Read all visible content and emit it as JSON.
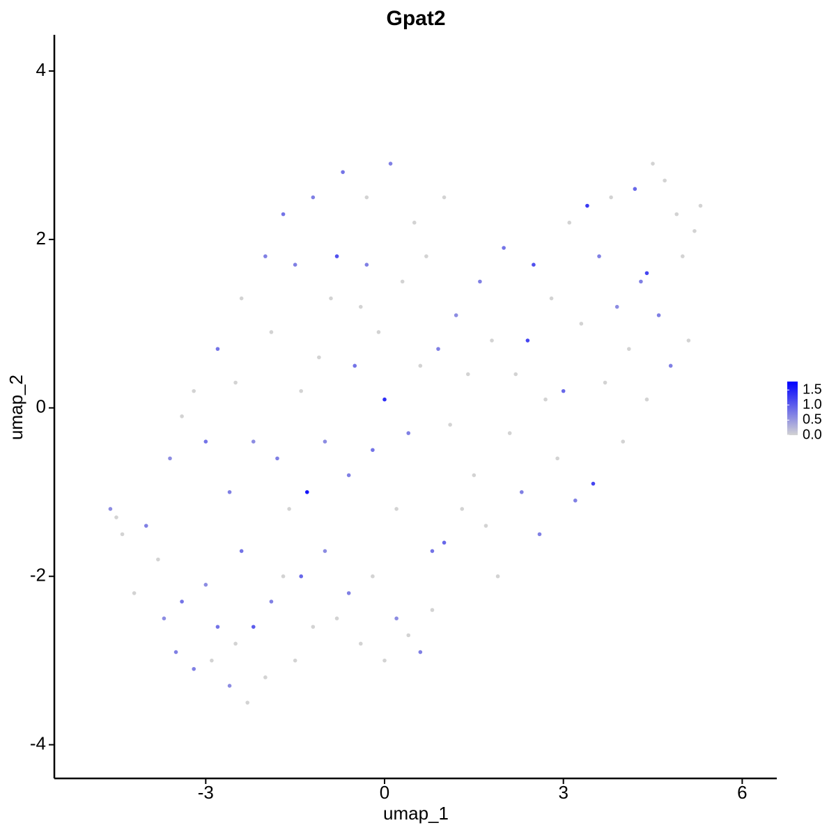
{
  "chart_data": {
    "type": "scatter",
    "title": "Gpat2",
    "x_label": "umap_1",
    "y_label": "umap_2",
    "xlim": [
      -5.54,
      6.58
    ],
    "ylim": [
      -4.4,
      4.43
    ],
    "xticks": [
      -3,
      0,
      3,
      6
    ],
    "yticks": [
      -4,
      -2,
      0,
      2,
      4
    ],
    "low_color": "#d3d3d3",
    "high_color": "#0000ff",
    "colorlim": [
      0,
      1.78
    ],
    "colorticks": [
      {
        "value": 0,
        "label": "0.0"
      },
      {
        "value": 0.5,
        "label": "0.5"
      },
      {
        "value": 1,
        "label": "1.0"
      },
      {
        "value": 1.5,
        "label": "1.5"
      }
    ],
    "x": [
      -4.6,
      -4.5,
      -4.4,
      -4.2,
      -4.0,
      -3.8,
      -3.7,
      -3.5,
      -3.4,
      -3.2,
      -3.0,
      -2.9,
      -2.8,
      -2.6,
      -2.5,
      -2.4,
      -2.3,
      -2.2,
      -2.0,
      -1.9,
      -1.7,
      -1.5,
      -1.4,
      -1.2,
      -1.0,
      -0.8,
      -0.6,
      -0.4,
      -0.2,
      0.0,
      0.2,
      0.4,
      0.6,
      0.8,
      1.0,
      -3.6,
      -3.4,
      -3.2,
      -3.0,
      -2.8,
      -2.6,
      -2.5,
      -2.4,
      -2.2,
      -2.0,
      -1.9,
      -1.8,
      -1.7,
      -1.6,
      -1.5,
      -1.4,
      -1.3,
      -1.2,
      -1.1,
      -1.0,
      -0.9,
      -0.8,
      -0.7,
      -0.6,
      -0.5,
      -0.4,
      -0.3,
      -0.2,
      -0.1,
      0.0,
      0.1,
      0.2,
      0.3,
      0.4,
      0.5,
      0.6,
      0.7,
      0.8,
      0.9,
      1.0,
      1.1,
      1.2,
      1.3,
      1.4,
      1.5,
      1.6,
      1.7,
      1.8,
      1.9,
      2.0,
      2.1,
      2.2,
      2.3,
      2.4,
      2.5,
      2.6,
      2.7,
      2.8,
      2.9,
      3.0,
      3.1,
      3.2,
      3.3,
      3.4,
      3.5,
      3.6,
      3.7,
      3.8,
      3.9,
      4.0,
      4.1,
      4.2,
      4.3,
      4.4,
      4.5,
      4.6,
      4.7,
      4.8,
      4.9,
      5.0,
      5.1,
      5.2,
      5.3,
      4.4,
      -0.3
    ],
    "y": [
      -1.2,
      -1.3,
      -1.5,
      -2.2,
      -1.4,
      -1.8,
      -2.5,
      -2.9,
      -2.3,
      -3.1,
      -2.1,
      -3.0,
      -2.6,
      -3.3,
      -2.8,
      -1.7,
      -3.5,
      -2.6,
      -3.2,
      -2.3,
      -2.0,
      -3.0,
      -2.0,
      -2.6,
      -1.7,
      -2.5,
      -2.2,
      -2.8,
      -2.0,
      -3.0,
      -2.5,
      -2.7,
      -2.9,
      -2.4,
      -1.6,
      -0.6,
      -0.1,
      0.2,
      -0.4,
      0.7,
      -1.0,
      0.3,
      1.3,
      -0.4,
      1.8,
      0.9,
      -0.6,
      2.3,
      -1.2,
      1.7,
      0.2,
      -1.0,
      2.5,
      0.6,
      -0.4,
      1.3,
      1.8,
      2.8,
      -0.8,
      0.5,
      1.2,
      2.5,
      -0.5,
      0.9,
      0.1,
      2.9,
      -1.2,
      1.5,
      -0.3,
      2.2,
      0.5,
      1.8,
      -1.7,
      0.7,
      2.5,
      -0.2,
      1.1,
      -1.2,
      0.4,
      -0.8,
      1.5,
      -1.4,
      0.8,
      -2.0,
      1.9,
      -0.3,
      0.4,
      -1.0,
      0.8,
      1.7,
      -1.5,
      0.1,
      1.3,
      -0.6,
      0.2,
      2.2,
      -1.1,
      1.0,
      2.4,
      -0.9,
      1.8,
      0.3,
      2.5,
      1.2,
      -0.4,
      0.7,
      2.6,
      1.5,
      0.1,
      2.9,
      1.1,
      2.7,
      0.5,
      2.3,
      1.8,
      0.8,
      2.1,
      2.4,
      1.6,
      1.7
    ],
    "values": [
      0.6,
      0,
      0,
      0,
      0.7,
      0,
      0.6,
      0.7,
      0.8,
      0.7,
      0.6,
      0,
      0.8,
      0.6,
      0,
      0.8,
      0,
      1.0,
      0,
      0.7,
      0,
      0,
      0.9,
      0,
      0.6,
      0,
      0.7,
      0,
      0,
      0,
      0.6,
      0,
      0.7,
      0,
      0.9,
      0.6,
      0,
      0,
      0.8,
      0.8,
      0.7,
      0,
      0,
      0.6,
      0.7,
      0,
      0.7,
      0.8,
      0,
      0.7,
      0,
      1.6,
      0.7,
      0,
      0.6,
      0,
      1.1,
      0.8,
      0.7,
      0.8,
      0,
      0,
      0.8,
      0,
      1.4,
      0.7,
      0,
      0,
      0.7,
      0,
      0,
      0,
      0.8,
      0.7,
      0,
      0,
      0.6,
      0,
      0,
      0,
      0.7,
      0,
      0,
      0,
      0.8,
      0,
      0,
      0.7,
      1.2,
      1.1,
      0.7,
      0,
      0,
      0,
      0.9,
      0,
      0.7,
      0,
      1.3,
      1.2,
      0.7,
      0,
      0,
      0.6,
      0,
      0,
      0.9,
      0.7,
      0,
      0,
      0.7,
      0,
      0.7,
      0,
      0,
      0,
      0,
      0,
      1.2,
      0.7
    ]
  }
}
